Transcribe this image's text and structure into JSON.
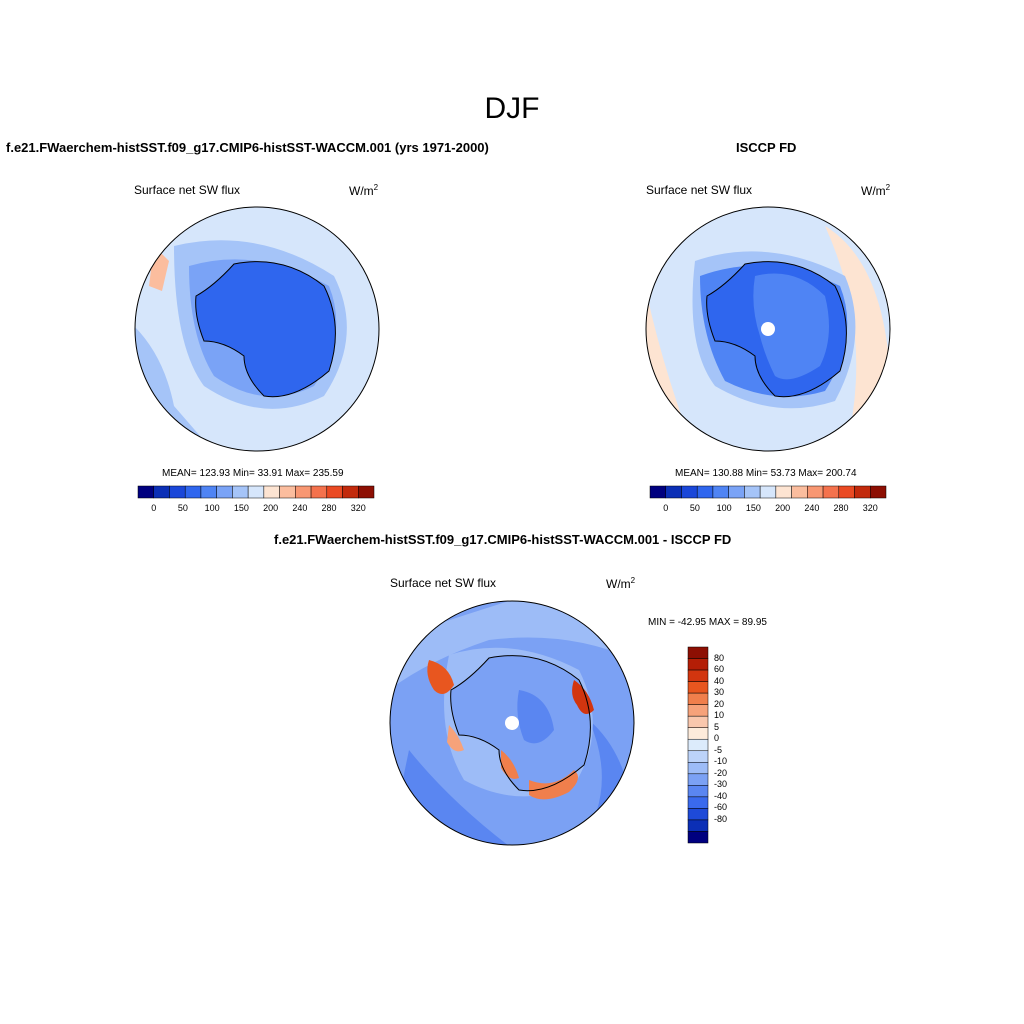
{
  "title": "DJF",
  "panels": [
    {
      "id": "model",
      "heading": "f.e21.FWaerchem-histSST.f09_g17.CMIP6-histSST-WACCM.001 (yrs 1971-2000)",
      "variable": "Surface net SW flux",
      "units_base": "W/m",
      "units_exp": "2",
      "stats": "MEAN= 123.93  Min=  33.91  Max= 235.59"
    },
    {
      "id": "obs",
      "heading": "ISCCP FD",
      "variable": "Surface net SW flux",
      "units_base": "W/m",
      "units_exp": "2",
      "stats": "MEAN= 130.88  Min=  53.73  Max= 200.74"
    },
    {
      "id": "diff",
      "heading": "f.e21.FWaerchem-histSST.f09_g17.CMIP6-histSST-WACCM.001 - ISCCP FD",
      "variable": "Surface net SW flux",
      "units_base": "W/m",
      "units_exp": "2",
      "stats": "MIN = -42.95 MAX =  89.95"
    }
  ],
  "colorbar_abs": {
    "colors": [
      "#00007f",
      "#0b2fb6",
      "#1a47d9",
      "#2f66ee",
      "#4f84f4",
      "#7aa3f6",
      "#a5c4f8",
      "#d6e6fb",
      "#fde4d2",
      "#fbbd9e",
      "#f89772",
      "#f4724d",
      "#ea4a23",
      "#c22a0c",
      "#8d0f03"
    ],
    "tick_labels": [
      "0",
      "50",
      "100",
      "150",
      "200",
      "240",
      "280",
      "320"
    ]
  },
  "colorbar_diff": {
    "colors": [
      "#8d0f03",
      "#b41e06",
      "#d2350f",
      "#e8561f",
      "#f07f4c",
      "#f6a27a",
      "#f9c7ad",
      "#fdebdb",
      "#dcebfb",
      "#bcd3f9",
      "#9dbcf7",
      "#7ba1f4",
      "#5a86f1",
      "#3a6aed",
      "#1e4ad8",
      "#0b2fb6",
      "#00007f"
    ],
    "tick_labels": [
      "80",
      "60",
      "40",
      "30",
      "20",
      "10",
      "5",
      "0",
      "-5",
      "-10",
      "-20",
      "-30",
      "-40",
      "-60",
      "-80"
    ]
  },
  "colors": {
    "ocean_light": "#d6e6fb",
    "ice_blue": "#2f66ee",
    "coast": "#000000"
  }
}
